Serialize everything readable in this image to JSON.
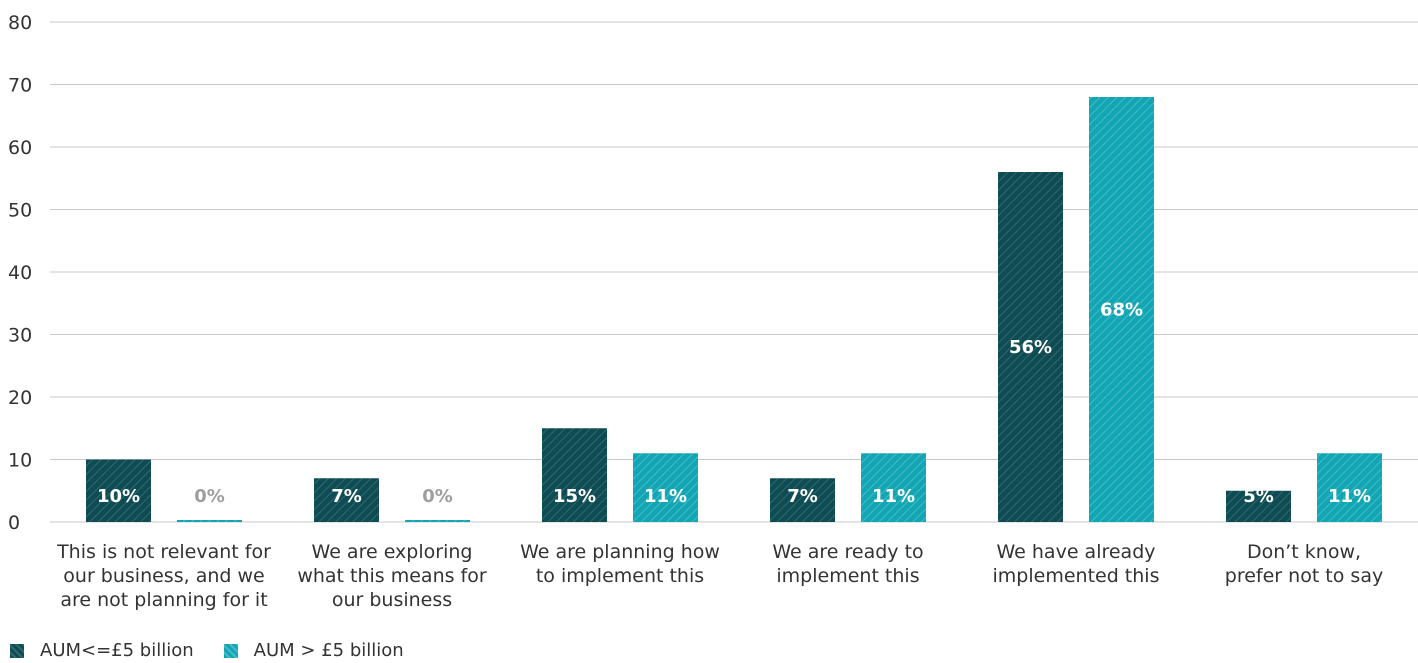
{
  "chart_data": {
    "type": "bar",
    "categories": [
      [
        "This is not relevant for",
        "our business, and we",
        "are not planning for it"
      ],
      [
        "We are exploring",
        "what this means for",
        "our business"
      ],
      [
        "We are planning how",
        "to implement this"
      ],
      [
        "We are ready to",
        "implement this"
      ],
      [
        "We have already",
        "implemented this"
      ],
      [
        "Don’t know,",
        "prefer not to say"
      ]
    ],
    "series": [
      {
        "name": "AUM<=£5 billion",
        "color": "#0f4b52",
        "values": [
          10,
          7,
          15,
          7,
          56,
          5
        ],
        "labels": [
          "10%",
          "7%",
          "15%",
          "7%",
          "56%",
          "5%"
        ]
      },
      {
        "name": "AUM > £5 billion",
        "color": "#12a6b5",
        "values": [
          0,
          0,
          11,
          11,
          68,
          11
        ],
        "labels": [
          "0%",
          "0%",
          "11%",
          "11%",
          "68%",
          "11%"
        ]
      }
    ],
    "yticks": [
      "0",
      "10",
      "20",
      "30",
      "40",
      "50",
      "60",
      "70",
      "80"
    ],
    "ylim": [
      0,
      80
    ],
    "grid": true,
    "legend": "bottom-left",
    "title": "",
    "xlabel": "",
    "ylabel": ""
  }
}
